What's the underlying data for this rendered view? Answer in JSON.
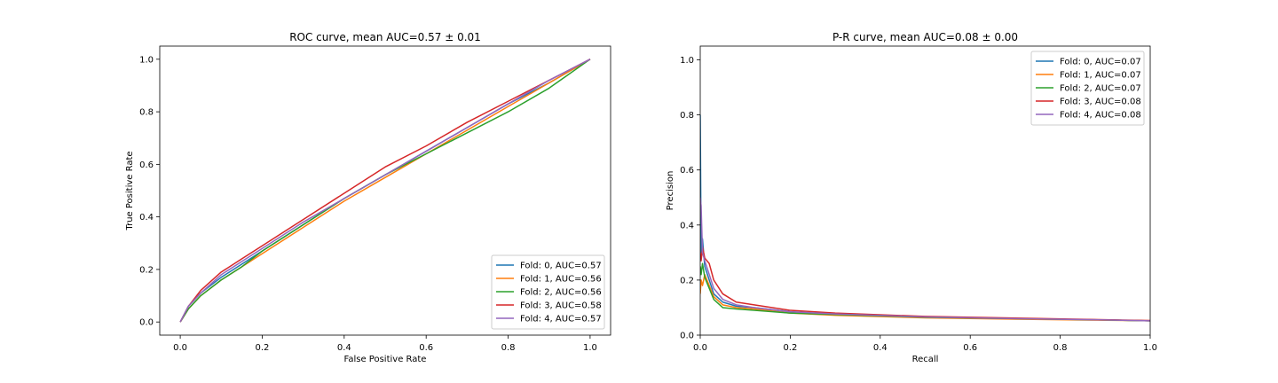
{
  "chart_data": [
    {
      "type": "line",
      "title": "ROC curve, mean AUC=0.57 ± 0.01",
      "xlabel": "False Positive Rate",
      "ylabel": "True Positive Rate",
      "xlim": [
        -0.05,
        1.05
      ],
      "ylim": [
        -0.05,
        1.05
      ],
      "xticks": [
        "0.0",
        "0.2",
        "0.4",
        "0.6",
        "0.8",
        "1.0"
      ],
      "yticks": [
        "0.0",
        "0.2",
        "0.4",
        "0.6",
        "0.8",
        "1.0"
      ],
      "grid": false,
      "legend_position": "lower right",
      "series": [
        {
          "name": "Fold: 0, AUC=0.57",
          "color": "#1f77b4",
          "x": [
            0,
            0.02,
            0.05,
            0.1,
            0.15,
            0.2,
            0.3,
            0.4,
            0.5,
            0.6,
            0.7,
            0.8,
            0.9,
            1.0
          ],
          "y": [
            0,
            0.06,
            0.11,
            0.17,
            0.22,
            0.27,
            0.37,
            0.47,
            0.56,
            0.65,
            0.74,
            0.83,
            0.91,
            1.0
          ]
        },
        {
          "name": "Fold: 1, AUC=0.56",
          "color": "#ff7f0e",
          "x": [
            0,
            0.02,
            0.05,
            0.1,
            0.15,
            0.2,
            0.3,
            0.4,
            0.5,
            0.6,
            0.7,
            0.8,
            0.9,
            1.0
          ],
          "y": [
            0,
            0.05,
            0.1,
            0.16,
            0.21,
            0.26,
            0.36,
            0.46,
            0.55,
            0.64,
            0.73,
            0.82,
            0.91,
            1.0
          ]
        },
        {
          "name": "Fold: 2, AUC=0.56",
          "color": "#2ca02c",
          "x": [
            0,
            0.02,
            0.05,
            0.1,
            0.15,
            0.2,
            0.3,
            0.4,
            0.5,
            0.6,
            0.7,
            0.8,
            0.9,
            1.0
          ],
          "y": [
            0,
            0.05,
            0.1,
            0.16,
            0.21,
            0.27,
            0.37,
            0.47,
            0.56,
            0.64,
            0.72,
            0.8,
            0.89,
            1.0
          ]
        },
        {
          "name": "Fold: 3, AUC=0.58",
          "color": "#d62728",
          "x": [
            0,
            0.02,
            0.05,
            0.1,
            0.15,
            0.2,
            0.3,
            0.4,
            0.5,
            0.6,
            0.7,
            0.8,
            0.9,
            1.0
          ],
          "y": [
            0,
            0.06,
            0.12,
            0.19,
            0.24,
            0.29,
            0.39,
            0.49,
            0.59,
            0.67,
            0.76,
            0.84,
            0.92,
            1.0
          ]
        },
        {
          "name": "Fold: 4, AUC=0.57",
          "color": "#9467bd",
          "x": [
            0,
            0.02,
            0.05,
            0.1,
            0.15,
            0.2,
            0.3,
            0.4,
            0.5,
            0.6,
            0.7,
            0.8,
            0.9,
            1.0
          ],
          "y": [
            0,
            0.06,
            0.11,
            0.18,
            0.23,
            0.28,
            0.38,
            0.47,
            0.56,
            0.65,
            0.74,
            0.83,
            0.92,
            1.0
          ]
        }
      ]
    },
    {
      "type": "line",
      "title": "P-R curve, mean AUC=0.08 ± 0.00",
      "xlabel": "Recall",
      "ylabel": "Precision",
      "xlim": [
        0.0,
        1.0
      ],
      "ylim": [
        0.0,
        1.05
      ],
      "xticks": [
        "0.0",
        "0.2",
        "0.4",
        "0.6",
        "0.8",
        "1.0"
      ],
      "yticks": [
        "0.0",
        "0.2",
        "0.4",
        "0.6",
        "0.8",
        "1.0"
      ],
      "grid": false,
      "legend_position": "upper right",
      "series": [
        {
          "name": "Fold: 0, AUC=0.07",
          "color": "#1f77b4",
          "x": [
            0,
            0.002,
            0.005,
            0.01,
            0.02,
            0.03,
            0.05,
            0.08,
            0.12,
            0.2,
            0.3,
            0.5,
            0.7,
            0.9,
            1.0
          ],
          "y": [
            0.8,
            0.3,
            0.35,
            0.25,
            0.2,
            0.15,
            0.12,
            0.105,
            0.1,
            0.085,
            0.075,
            0.065,
            0.06,
            0.055,
            0.052
          ]
        },
        {
          "name": "Fold: 1, AUC=0.07",
          "color": "#ff7f0e",
          "x": [
            0,
            0.002,
            0.005,
            0.01,
            0.02,
            0.03,
            0.05,
            0.08,
            0.12,
            0.2,
            0.3,
            0.5,
            0.7,
            0.9,
            1.0
          ],
          "y": [
            0.15,
            0.2,
            0.18,
            0.22,
            0.18,
            0.14,
            0.11,
            0.1,
            0.095,
            0.08,
            0.072,
            0.063,
            0.058,
            0.054,
            0.052
          ]
        },
        {
          "name": "Fold: 2, AUC=0.07",
          "color": "#2ca02c",
          "x": [
            0,
            0.002,
            0.005,
            0.01,
            0.02,
            0.03,
            0.05,
            0.08,
            0.12,
            0.2,
            0.3,
            0.5,
            0.7,
            0.9,
            1.0
          ],
          "y": [
            0.25,
            0.22,
            0.26,
            0.21,
            0.17,
            0.13,
            0.1,
            0.095,
            0.09,
            0.08,
            0.075,
            0.065,
            0.06,
            0.055,
            0.052
          ]
        },
        {
          "name": "Fold: 3, AUC=0.08",
          "color": "#d62728",
          "x": [
            0,
            0.002,
            0.005,
            0.01,
            0.02,
            0.03,
            0.05,
            0.08,
            0.12,
            0.2,
            0.3,
            0.5,
            0.7,
            0.9,
            1.0
          ],
          "y": [
            0.3,
            0.27,
            0.32,
            0.28,
            0.26,
            0.2,
            0.15,
            0.12,
            0.11,
            0.09,
            0.08,
            0.068,
            0.062,
            0.056,
            0.053
          ]
        },
        {
          "name": "Fold: 4, AUC=0.08",
          "color": "#9467bd",
          "x": [
            0,
            0.002,
            0.005,
            0.01,
            0.02,
            0.03,
            0.05,
            0.08,
            0.12,
            0.2,
            0.3,
            0.5,
            0.7,
            0.9,
            1.0
          ],
          "y": [
            0.5,
            0.47,
            0.3,
            0.27,
            0.22,
            0.17,
            0.13,
            0.11,
            0.1,
            0.085,
            0.077,
            0.066,
            0.06,
            0.055,
            0.052
          ]
        }
      ]
    }
  ]
}
